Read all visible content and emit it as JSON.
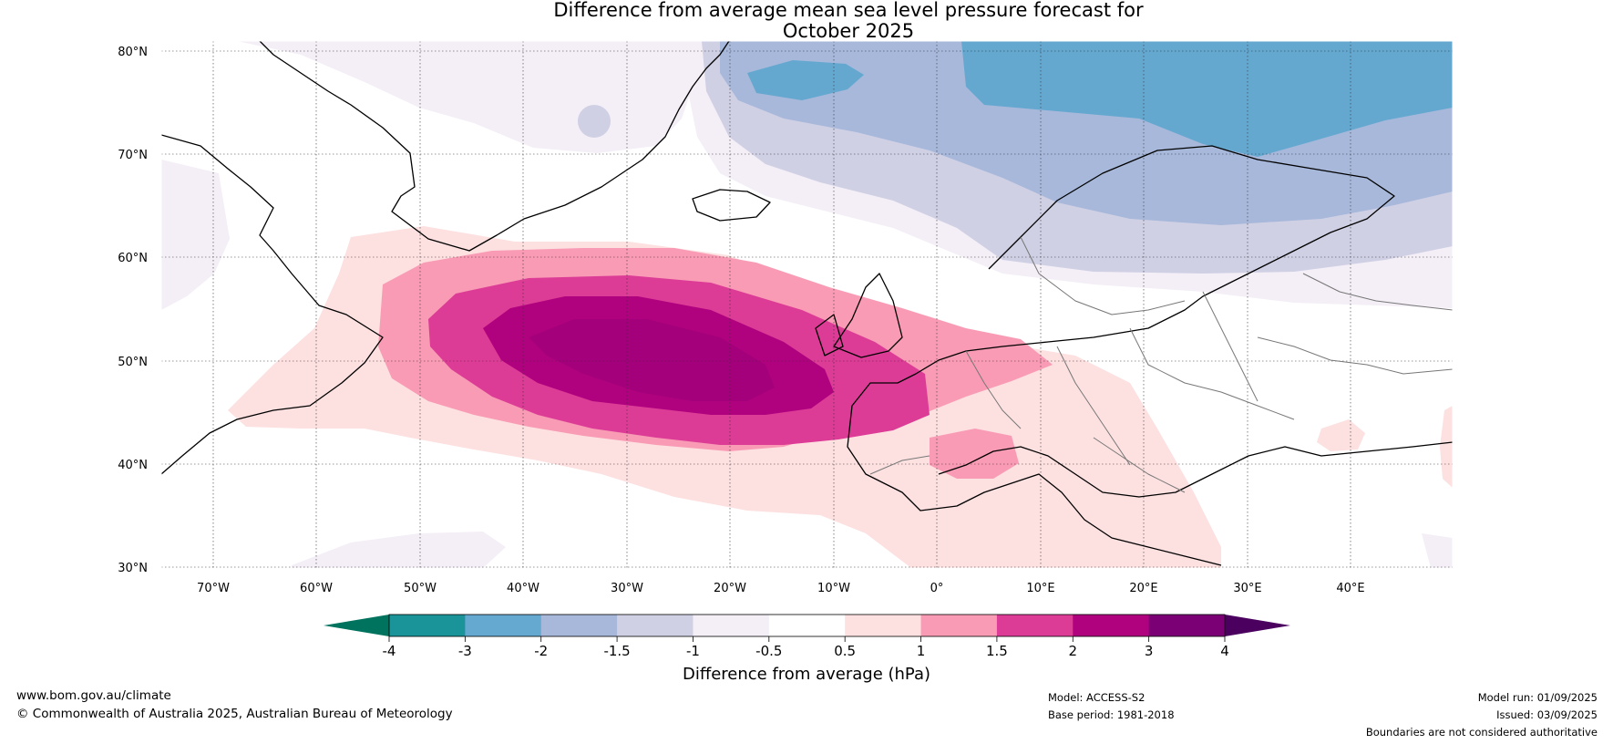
{
  "title": {
    "line1": "Difference from average mean sea level pressure forecast for",
    "line2": "October 2025"
  },
  "map": {
    "lon_range": [
      -75,
      50
    ],
    "lat_range": [
      30,
      80
    ],
    "lat_labels": [
      "30°N",
      "40°N",
      "50°N",
      "60°N",
      "70°N",
      "80°N"
    ],
    "lon_labels": [
      "70°W",
      "60°W",
      "50°W",
      "40°W",
      "30°W",
      "20°W",
      "10°W",
      "0°",
      "10°E",
      "20°E",
      "30°E",
      "40°E"
    ],
    "regions": [
      {
        "level": "1_1.5",
        "color": "#f99bb5",
        "note": "positive anomaly"
      },
      {
        "level": "3_4",
        "color": "#b0027f",
        "note": "positive anomaly core"
      },
      {
        "level": "-2_-3",
        "color": "#64a8d0",
        "note": "negative anomaly"
      }
    ]
  },
  "colorbar": {
    "label": "Difference from average (hPa)",
    "ticks": [
      "-4",
      "-3",
      "-2",
      "-1.5",
      "-1",
      "-0.5",
      "0.5",
      "1",
      "1.5",
      "2",
      "3",
      "4"
    ],
    "colors": [
      "#1a9498",
      "#65a8d0",
      "#a7b8da",
      "#d0d0e5",
      "#f4eef6",
      "#ffffff",
      "#fde0e0",
      "#f99bb5",
      "#dc3c96",
      "#b0027f",
      "#7b0076"
    ],
    "min_color": "#00735f",
    "max_color": "#4b005f"
  },
  "footer": {
    "website": "www.bom.gov.au/climate",
    "copyright": "© Commonwealth of Australia 2025, Australian Bureau of Meteorology",
    "model": "Model: ACCESS-S2",
    "base_period": "Base period: 1981-2018",
    "model_run": "Model run: 01/09/2025",
    "issued": "Issued: 03/09/2025",
    "disclaimer": "Boundaries are not considered authoritative"
  }
}
